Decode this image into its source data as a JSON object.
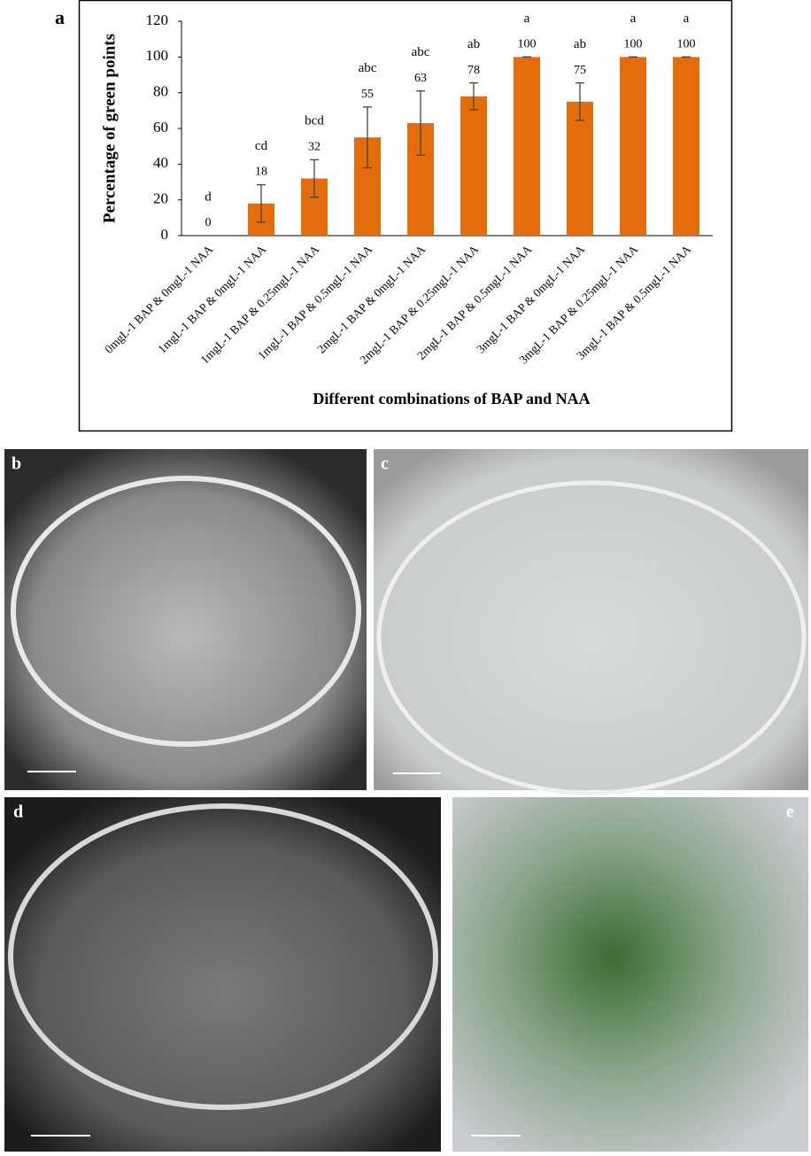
{
  "chart_data": {
    "type": "bar",
    "panel": "a",
    "xlabel": "Different combinations of  BAP and NAA",
    "ylabel": "Percentage of green points",
    "categories": [
      "0mgL-1 BAP & 0mgL-1 NAA",
      "1mgL-1 BAP & 0mgL-1 NAA",
      "1mgL-1 BAP & 0.25mgL-1 NAA",
      "1mgL-1 BAP & 0.5mgL-1 NAA",
      "2mgL-1 BAP & 0mgL-1 NAA",
      "2mgL-1 BAP & 0.25mgL-1 NAA",
      "2mgL-1 BAP & 0.5mgL-1 NAA",
      "3mgL-1 BAP & 0mgL-1 NAA",
      "3mgL-1 BAP & 0.25mgL-1 NAA",
      "3mgL-1 BAP & 0.5mgL-1 NAA"
    ],
    "values": [
      0,
      18,
      32,
      55,
      63,
      78,
      100,
      75,
      100,
      100
    ],
    "errors": [
      0,
      10.5,
      10.5,
      17,
      18,
      7.5,
      0,
      10.5,
      0,
      0
    ],
    "letters": [
      "d",
      "cd",
      "bcd",
      "abc",
      "abc",
      "ab",
      "a",
      "ab",
      "a",
      "a"
    ],
    "color": "#e46c0a",
    "ylim": [
      0,
      120
    ],
    "yticks": [
      0,
      20,
      40,
      60,
      80,
      100,
      120
    ],
    "grid": false
  },
  "photos": [
    {
      "label": "b"
    },
    {
      "label": "c"
    },
    {
      "label": "d"
    },
    {
      "label": "e"
    }
  ]
}
